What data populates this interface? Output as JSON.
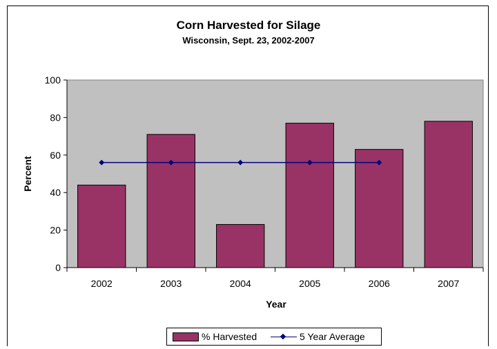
{
  "chart_data": {
    "type": "bar",
    "title": "Corn Harvested for Silage",
    "subtitle": "Wisconsin, Sept. 23, 2002-2007",
    "xlabel": "Year",
    "ylabel": "Percent",
    "categories": [
      "2002",
      "2003",
      "2004",
      "2005",
      "2006",
      "2007"
    ],
    "ylim": [
      0,
      100
    ],
    "yticks": [
      "0",
      "20",
      "40",
      "60",
      "80",
      "100"
    ],
    "grid": false,
    "legend_position": "bottom",
    "series": [
      {
        "name": "% Harvested",
        "type": "bar",
        "values": [
          44,
          71,
          23,
          77,
          63,
          78
        ],
        "color": "#993366"
      },
      {
        "name": "5 Year Average",
        "type": "line",
        "values": [
          56,
          56,
          56,
          56,
          56,
          null
        ],
        "color": "#000080"
      }
    ],
    "plot_background": "#c0c0c0"
  }
}
